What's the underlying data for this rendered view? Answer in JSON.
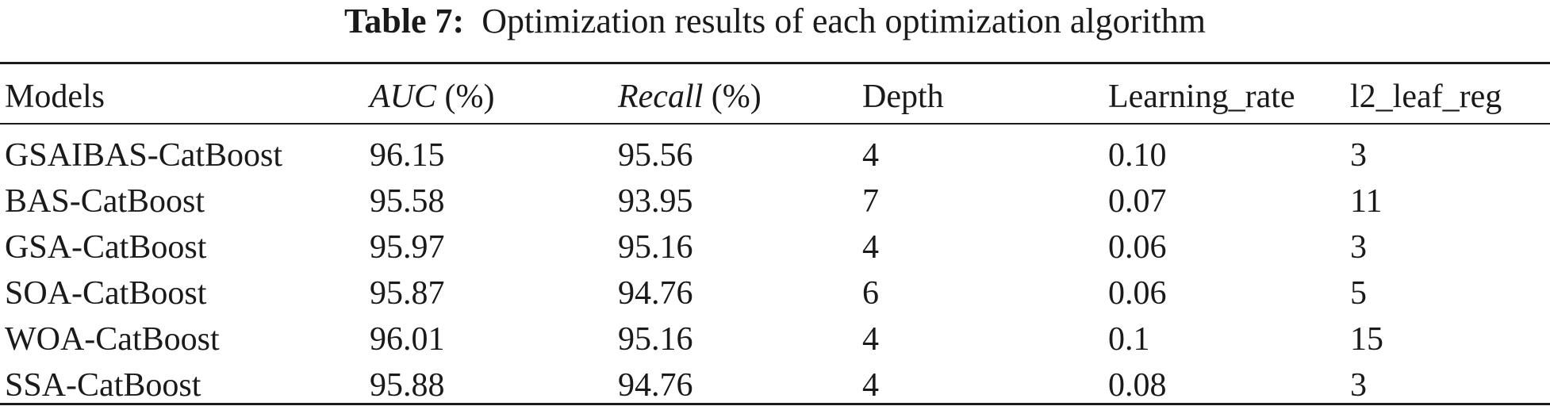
{
  "caption": {
    "label": "Table 7:",
    "text": "Optimization results of each optimization algorithm"
  },
  "table": {
    "headers": [
      {
        "main": "Models",
        "italic": "",
        "unit": ""
      },
      {
        "main": "",
        "italic": "AUC",
        "unit": " (%)"
      },
      {
        "main": "",
        "italic": "Recall",
        "unit": " (%)"
      },
      {
        "main": "Depth",
        "italic": "",
        "unit": ""
      },
      {
        "main": "Learning_rate",
        "italic": "",
        "unit": ""
      },
      {
        "main": "l2_leaf_reg",
        "italic": "",
        "unit": ""
      }
    ],
    "rows": [
      [
        "GSAIBAS-CatBoost",
        "96.15",
        "95.56",
        "4",
        "0.10",
        "3"
      ],
      [
        "BAS-CatBoost",
        "95.58",
        "93.95",
        "7",
        "0.07",
        "11"
      ],
      [
        "GSA-CatBoost",
        "95.97",
        "95.16",
        "4",
        "0.06",
        "3"
      ],
      [
        "SOA-CatBoost",
        "95.87",
        "94.76",
        "6",
        "0.06",
        "5"
      ],
      [
        "WOA-CatBoost",
        "96.01",
        "95.16",
        "4",
        "0.1",
        "15"
      ],
      [
        "SSA-CatBoost",
        "95.88",
        "94.76",
        "4",
        "0.08",
        "3"
      ]
    ]
  }
}
